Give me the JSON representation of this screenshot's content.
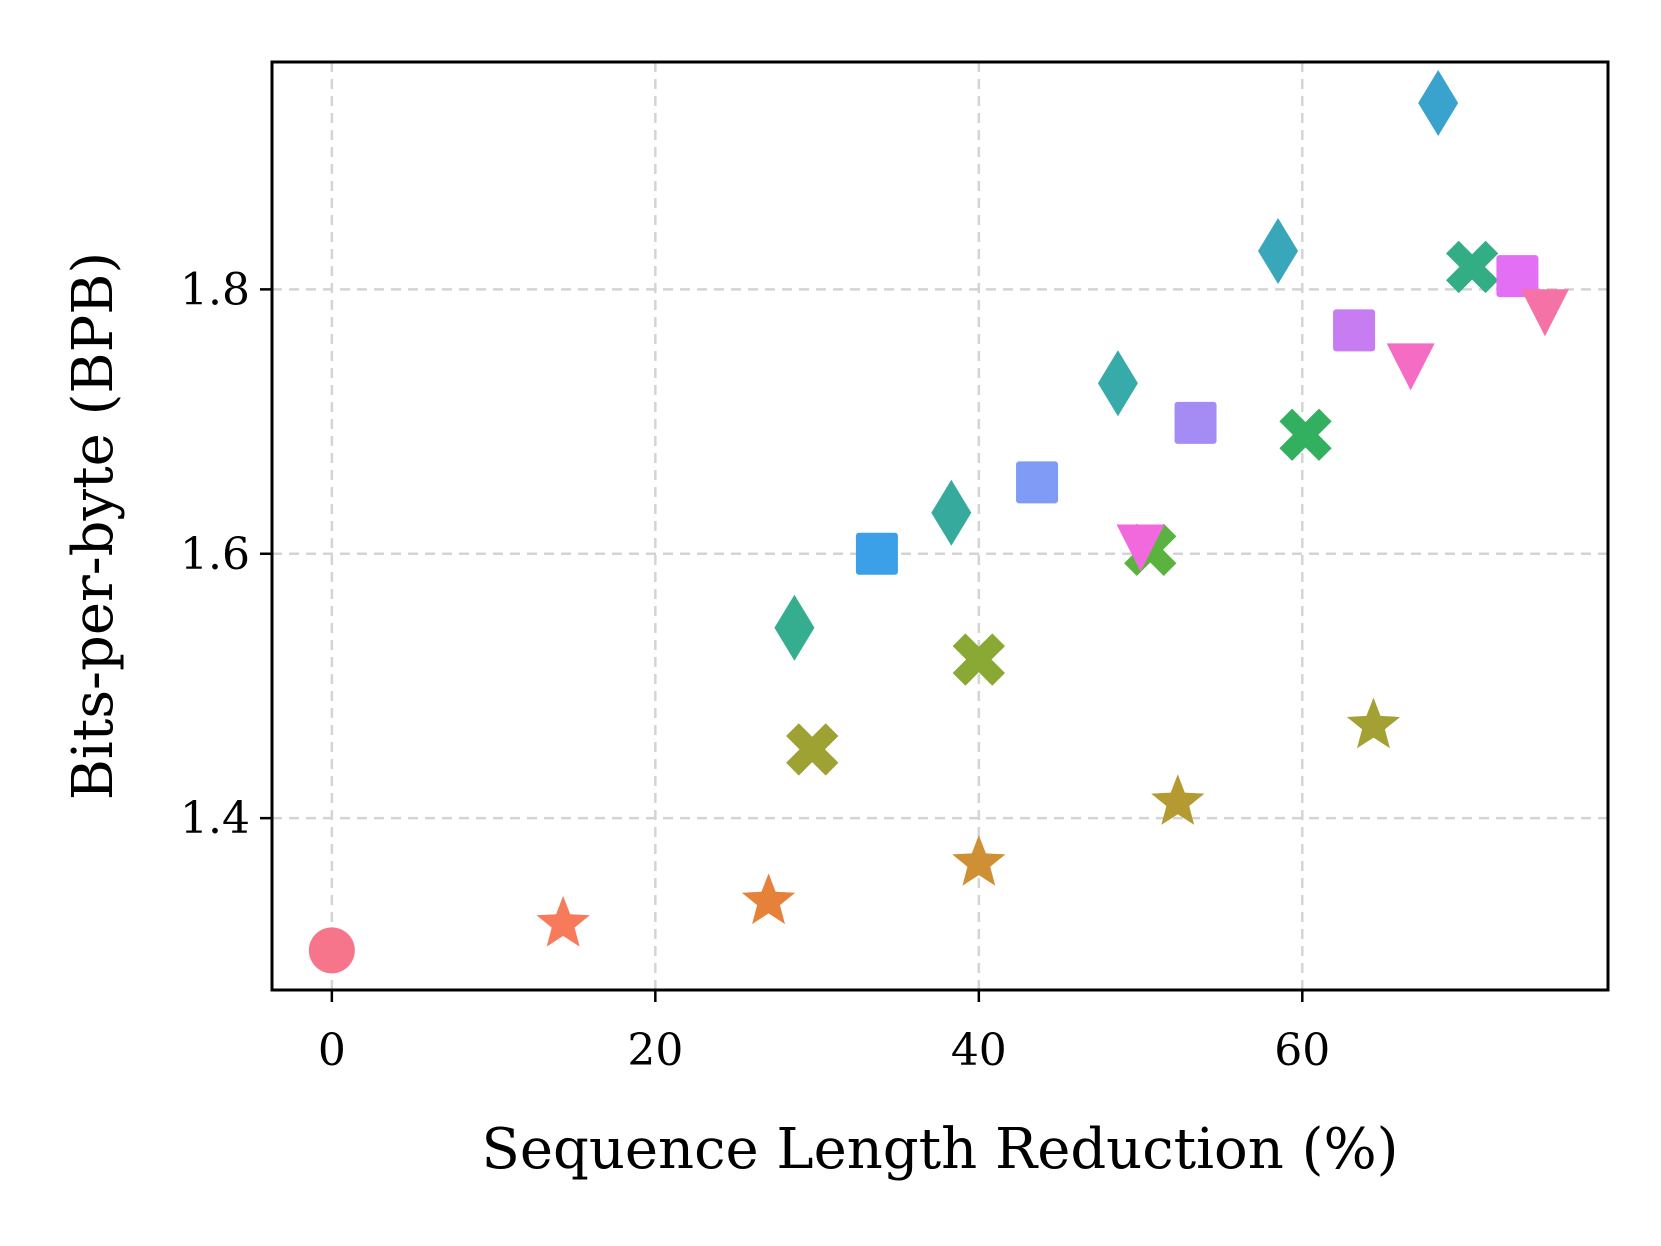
{
  "chart_data": {
    "type": "scatter",
    "title": "",
    "xlabel": "Sequence Length Reduction (%)",
    "ylabel": "Bits-per-byte (BPB)",
    "xlim": [
      -3.7,
      78.9
    ],
    "ylim": [
      1.27,
      1.972
    ],
    "xticks": [
      0,
      20,
      40,
      60
    ],
    "yticks": [
      1.4,
      1.6,
      1.8
    ],
    "xtick_labels": [
      "0",
      "20",
      "40",
      "60"
    ],
    "ytick_labels": [
      "1.4",
      "1.6",
      "1.8"
    ],
    "grid": true,
    "points": [
      {
        "x": 0.0,
        "y": 1.3,
        "marker": "circle",
        "color": "#f7758a"
      },
      {
        "x": 14.3,
        "y": 1.32,
        "marker": "star",
        "color": "#f77a5b"
      },
      {
        "x": 27.0,
        "y": 1.337,
        "marker": "star",
        "color": "#e6813a"
      },
      {
        "x": 40.0,
        "y": 1.366,
        "marker": "star",
        "color": "#cf8f34"
      },
      {
        "x": 52.3,
        "y": 1.412,
        "marker": "star",
        "color": "#b49a31"
      },
      {
        "x": 64.4,
        "y": 1.47,
        "marker": "star",
        "color": "#a3a133"
      },
      {
        "x": 29.7,
        "y": 1.452,
        "marker": "x",
        "color": "#9da233"
      },
      {
        "x": 40.0,
        "y": 1.52,
        "marker": "x",
        "color": "#89a834"
      },
      {
        "x": 50.6,
        "y": 1.603,
        "marker": "x",
        "color": "#5bb33f"
      },
      {
        "x": 60.2,
        "y": 1.69,
        "marker": "x",
        "color": "#33b05f"
      },
      {
        "x": 70.5,
        "y": 1.817,
        "marker": "x",
        "color": "#33ae84"
      },
      {
        "x": 28.6,
        "y": 1.544,
        "marker": "diamond",
        "color": "#35ad8f"
      },
      {
        "x": 38.3,
        "y": 1.631,
        "marker": "diamond",
        "color": "#36ab9d"
      },
      {
        "x": 48.6,
        "y": 1.729,
        "marker": "diamond",
        "color": "#37aaaa"
      },
      {
        "x": 58.5,
        "y": 1.829,
        "marker": "diamond",
        "color": "#38a7ba"
      },
      {
        "x": 68.4,
        "y": 1.941,
        "marker": "diamond",
        "color": "#3aa3cd"
      },
      {
        "x": 33.7,
        "y": 1.6,
        "marker": "square",
        "color": "#3ca0e9"
      },
      {
        "x": 43.6,
        "y": 1.654,
        "marker": "square",
        "color": "#7f9bf5"
      },
      {
        "x": 53.4,
        "y": 1.699,
        "marker": "square",
        "color": "#a58cf5"
      },
      {
        "x": 63.2,
        "y": 1.769,
        "marker": "square",
        "color": "#c77cf2"
      },
      {
        "x": 73.3,
        "y": 1.81,
        "marker": "square",
        "color": "#e36ff4"
      },
      {
        "x": 50.0,
        "y": 1.607,
        "marker": "triangle-down",
        "color": "#f269dd"
      },
      {
        "x": 66.7,
        "y": 1.744,
        "marker": "triangle-down",
        "color": "#f46cc3"
      },
      {
        "x": 75.0,
        "y": 1.785,
        "marker": "triangle-down",
        "color": "#f472a5"
      }
    ]
  }
}
